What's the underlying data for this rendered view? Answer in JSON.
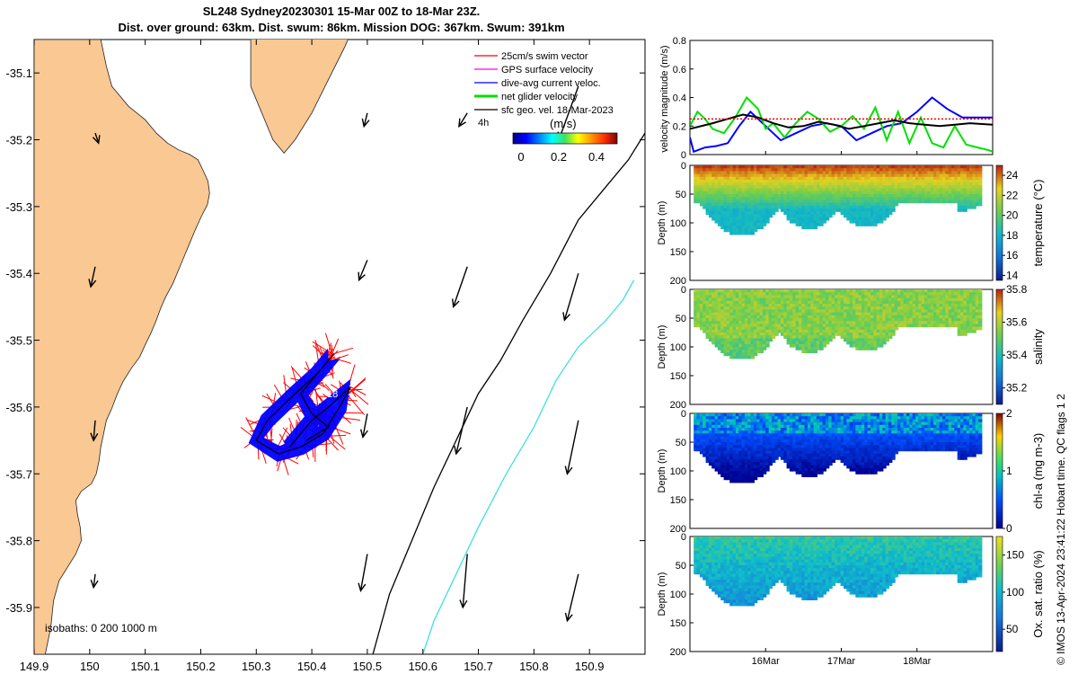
{
  "header": {
    "title_line1": "SL248 Sydney20230301 15-Mar 00Z to 18-Mar 23Z.",
    "title_line2": "Dist. over ground: 63km. Dist. swum: 86km. Mission DOG: 367km. Swum: 391km"
  },
  "colors": {
    "land": "#f9c893",
    "swim": "#ff0000",
    "gps": "#ff00ff",
    "dive_avg": "#0000ff",
    "net": "#00e000",
    "isobath_200": "#000000",
    "isobath_1000": "#40e0e0"
  },
  "chart_data": [
    {
      "id": "map",
      "type": "scatter",
      "xticks": [
        "149.9",
        "150",
        "150.1",
        "150.2",
        "150.3",
        "150.4",
        "150.5",
        "150.6",
        "150.7",
        "150.8",
        "150.9"
      ],
      "yticks": [
        "-35.1",
        "-35.2",
        "-35.3",
        "-35.4",
        "-35.5",
        "-35.6",
        "-35.7",
        "-35.8",
        "-35.9"
      ],
      "xlim": [
        149.9,
        151.0
      ],
      "ylim": [
        -35.97,
        -35.05
      ],
      "legend": [
        {
          "label": "25cm/s swim vector",
          "color": "#ff0000"
        },
        {
          "label": "GPS surface velocity",
          "color": "#ff00ff"
        },
        {
          "label": "dive-avg current veloc.",
          "color": "#0000ff"
        },
        {
          "label": "net glider velocity",
          "color": "#00e000"
        },
        {
          "label": "sfc geo. vel. 18-Mar-2023",
          "color": "#000000"
        }
      ],
      "legend_placement": "top-right",
      "colorbar": {
        "label": "(m/s)",
        "ticks": [
          "0",
          "0.2",
          "0.4"
        ],
        "range": [
          0,
          0.5
        ]
      },
      "isobath_label": "isobaths: 0   200  1000 m",
      "annotations": [
        "4h",
        "18"
      ],
      "coastline": [
        [
          150.02,
          -35.05
        ],
        [
          150.03,
          -35.09
        ],
        [
          150.04,
          -35.12
        ],
        [
          150.07,
          -35.15
        ],
        [
          150.1,
          -35.17
        ],
        [
          150.12,
          -35.19
        ],
        [
          150.14,
          -35.205
        ],
        [
          150.16,
          -35.215
        ],
        [
          150.18,
          -35.222
        ],
        [
          150.195,
          -35.23
        ],
        [
          150.205,
          -35.247
        ],
        [
          150.213,
          -35.262
        ],
        [
          150.216,
          -35.28
        ],
        [
          150.212,
          -35.297
        ],
        [
          150.201,
          -35.315
        ],
        [
          150.19,
          -35.335
        ],
        [
          150.18,
          -35.355
        ],
        [
          150.17,
          -35.375
        ],
        [
          150.16,
          -35.395
        ],
        [
          150.15,
          -35.415
        ],
        [
          150.137,
          -35.435
        ],
        [
          150.128,
          -35.452
        ],
        [
          150.12,
          -35.47
        ],
        [
          150.11,
          -35.49
        ],
        [
          150.1,
          -35.507
        ],
        [
          150.09,
          -35.525
        ],
        [
          150.075,
          -35.542
        ],
        [
          150.06,
          -35.562
        ],
        [
          150.05,
          -35.58
        ],
        [
          150.04,
          -35.602
        ],
        [
          150.03,
          -35.62
        ],
        [
          150.025,
          -35.64
        ],
        [
          150.02,
          -35.66
        ],
        [
          150.017,
          -35.68
        ],
        [
          150.012,
          -35.7
        ],
        [
          150.003,
          -35.715
        ],
        [
          149.985,
          -35.726
        ],
        [
          149.975,
          -35.74
        ],
        [
          149.978,
          -35.76
        ],
        [
          149.983,
          -35.78
        ],
        [
          149.985,
          -35.8
        ],
        [
          149.975,
          -35.82
        ],
        [
          149.96,
          -35.84
        ],
        [
          149.945,
          -35.86
        ],
        [
          149.935,
          -35.89
        ],
        [
          149.93,
          -35.93
        ],
        [
          149.92,
          -35.97
        ]
      ],
      "headland": [
        [
          150.29,
          -35.04
        ],
        [
          150.29,
          -35.12
        ],
        [
          150.31,
          -35.16
        ],
        [
          150.33,
          -35.2
        ],
        [
          150.35,
          -35.22
        ],
        [
          150.37,
          -35.2
        ],
        [
          150.4,
          -35.16
        ],
        [
          150.43,
          -35.11
        ],
        [
          150.46,
          -35.06
        ],
        [
          150.47,
          -35.04
        ]
      ],
      "isobath_200": [
        [
          150.51,
          -35.97
        ],
        [
          150.54,
          -35.88
        ],
        [
          150.58,
          -35.8
        ],
        [
          150.62,
          -35.72
        ],
        [
          150.66,
          -35.65
        ],
        [
          150.7,
          -35.58
        ],
        [
          150.74,
          -35.53
        ],
        [
          150.78,
          -35.47
        ],
        [
          150.83,
          -35.4
        ],
        [
          150.88,
          -35.32
        ],
        [
          150.93,
          -35.27
        ],
        [
          150.97,
          -35.23
        ],
        [
          151.0,
          -35.19
        ]
      ],
      "isobath_1000": [
        [
          150.6,
          -35.97
        ],
        [
          150.62,
          -35.92
        ],
        [
          150.66,
          -35.85
        ],
        [
          150.7,
          -35.78
        ],
        [
          150.75,
          -35.7
        ],
        [
          150.8,
          -35.63
        ],
        [
          150.84,
          -35.56
        ],
        [
          150.88,
          -35.51
        ],
        [
          150.93,
          -35.47
        ],
        [
          150.96,
          -35.44
        ],
        [
          150.98,
          -35.41
        ]
      ],
      "track": [
        [
          150.36,
          -35.66
        ],
        [
          150.4,
          -35.62
        ],
        [
          150.43,
          -35.6
        ],
        [
          150.47,
          -35.57
        ],
        [
          150.45,
          -35.6
        ],
        [
          150.42,
          -35.64
        ],
        [
          150.38,
          -35.66
        ],
        [
          150.34,
          -35.67
        ],
        [
          150.3,
          -35.65
        ],
        [
          150.32,
          -35.62
        ],
        [
          150.37,
          -35.58
        ],
        [
          150.41,
          -35.55
        ],
        [
          150.44,
          -35.52
        ],
        [
          150.42,
          -35.54
        ],
        [
          150.38,
          -35.58
        ],
        [
          150.4,
          -35.61
        ],
        [
          150.43,
          -35.63
        ],
        [
          150.39,
          -35.65
        ]
      ],
      "geo_vectors": [
        [
          150.01,
          -35.19,
          0.006,
          -0.015
        ],
        [
          150.01,
          -35.39,
          -0.008,
          -0.03
        ],
        [
          150.01,
          -35.62,
          -0.003,
          -0.03
        ],
        [
          150.01,
          -35.85,
          -0.003,
          -0.02
        ],
        [
          150.5,
          -35.16,
          -0.006,
          -0.02
        ],
        [
          150.5,
          -35.38,
          -0.015,
          -0.03
        ],
        [
          150.5,
          -35.61,
          -0.008,
          -0.035
        ],
        [
          150.5,
          -35.82,
          -0.012,
          -0.055
        ],
        [
          150.68,
          -35.16,
          -0.015,
          -0.02
        ],
        [
          150.68,
          -35.39,
          -0.025,
          -0.06
        ],
        [
          150.68,
          -35.6,
          -0.02,
          -0.07
        ],
        [
          150.68,
          -35.82,
          -0.008,
          -0.08
        ],
        [
          150.88,
          -35.12,
          -0.035,
          -0.08
        ],
        [
          150.88,
          -35.4,
          -0.025,
          -0.07
        ],
        [
          150.88,
          -35.62,
          -0.02,
          -0.08
        ],
        [
          150.88,
          -35.85,
          -0.02,
          -0.07
        ]
      ]
    },
    {
      "id": "velocity",
      "type": "line",
      "ylabel": "velocity magnitude (m/s)",
      "ylim": [
        0,
        0.8
      ],
      "yticks": [
        "0",
        "0.2",
        "0.4",
        "0.6",
        "0.8"
      ],
      "xlim": [
        15.0,
        19.0
      ],
      "series": [
        {
          "color": "#0000ff",
          "x": [
            15.0,
            15.05,
            15.2,
            15.35,
            15.5,
            15.65,
            15.8,
            16.0,
            16.2,
            16.4,
            16.6,
            16.8,
            17.0,
            17.2,
            17.4,
            17.6,
            17.8,
            18.0,
            18.2,
            18.4,
            18.6,
            18.8,
            19.0
          ],
          "y": [
            0.12,
            0.02,
            0.05,
            0.06,
            0.08,
            0.2,
            0.3,
            0.2,
            0.1,
            0.15,
            0.2,
            0.22,
            0.2,
            0.1,
            0.15,
            0.2,
            0.22,
            0.3,
            0.4,
            0.32,
            0.26,
            0.26,
            0.26
          ]
        },
        {
          "color": "#00e000",
          "x": [
            15.0,
            15.1,
            15.2,
            15.3,
            15.45,
            15.6,
            15.75,
            15.9,
            16.0,
            16.1,
            16.25,
            16.4,
            16.55,
            16.7,
            16.85,
            17.0,
            17.15,
            17.3,
            17.45,
            17.6,
            17.75,
            17.9,
            18.05,
            18.2,
            18.35,
            18.5,
            18.65,
            18.8,
            18.95,
            19.0
          ],
          "y": [
            0.2,
            0.3,
            0.25,
            0.18,
            0.15,
            0.26,
            0.4,
            0.32,
            0.18,
            0.22,
            0.12,
            0.22,
            0.3,
            0.25,
            0.16,
            0.2,
            0.27,
            0.18,
            0.33,
            0.1,
            0.3,
            0.08,
            0.26,
            0.08,
            0.05,
            0.2,
            0.07,
            0.05,
            0.03,
            0.02
          ]
        },
        {
          "color": "#000000",
          "x": [
            15.0,
            15.3,
            15.5,
            15.7,
            15.9,
            16.1,
            16.3,
            16.5,
            16.7,
            16.9,
            17.1,
            17.3,
            17.5,
            17.7,
            17.9,
            18.1,
            18.3,
            18.5,
            18.7,
            19.0
          ],
          "y": [
            0.18,
            0.22,
            0.25,
            0.28,
            0.26,
            0.22,
            0.19,
            0.2,
            0.23,
            0.21,
            0.18,
            0.2,
            0.22,
            0.24,
            0.22,
            0.21,
            0.2,
            0.21,
            0.22,
            0.21
          ]
        },
        {
          "color": "#ff0000",
          "x": [
            15.0,
            15.5,
            16.0,
            16.5,
            17.0,
            17.5,
            18.0,
            18.5,
            19.0
          ],
          "y": [
            0.25,
            0.25,
            0.25,
            0.25,
            0.25,
            0.25,
            0.25,
            0.25,
            0.25
          ]
        }
      ]
    },
    {
      "id": "temperature",
      "type": "heatmap",
      "ylabel": "Depth (m)",
      "colorbar_label": "temperature (°C)",
      "colorbar_ticks": [
        "14",
        "16",
        "18",
        "20",
        "22",
        "24"
      ],
      "crange": [
        13.5,
        25
      ],
      "surface": 23.5,
      "bottom": 18.5,
      "mixed": 25,
      "ylim": [
        0,
        200
      ],
      "yticks": [
        "0",
        "50",
        "100",
        "150",
        "200"
      ]
    },
    {
      "id": "salinity",
      "type": "heatmap",
      "ylabel": "Depth (m)",
      "colorbar_label": "salinity",
      "colorbar_ticks": [
        "35.2",
        "35.4",
        "35.6",
        "35.8"
      ],
      "crange": [
        35.1,
        35.8
      ],
      "surface": 35.55,
      "bottom": 35.5,
      "mixed": 35.5,
      "ylim": [
        0,
        200
      ],
      "yticks": [
        "0",
        "50",
        "100",
        "150",
        "200"
      ]
    },
    {
      "id": "chla",
      "type": "heatmap",
      "ylabel": "Depth (m)",
      "colorbar_label": "chl-a (mg m-3)",
      "colorbar_ticks": [
        "0",
        "1",
        "2"
      ],
      "crange": [
        0,
        2
      ],
      "surface": 0.6,
      "bottom": 0.05,
      "mixed": 0.7,
      "ylim": [
        0,
        200
      ],
      "yticks": [
        "0",
        "50",
        "100",
        "150",
        "200"
      ]
    },
    {
      "id": "oxygen",
      "type": "heatmap",
      "ylabel": "Depth (m)",
      "colorbar_label": "Ox. sat. ratio (%)",
      "colorbar_ticks": [
        "50",
        "100",
        "150"
      ],
      "crange": [
        20,
        175
      ],
      "surface": 115,
      "bottom": 90,
      "mixed": 120,
      "ylim": [
        0,
        200
      ],
      "yticks": [
        "0",
        "50",
        "100",
        "150",
        "200"
      ],
      "xticks": [
        {
          "v": 16,
          "label": "16Mar"
        },
        {
          "v": 17,
          "label": "17Mar"
        },
        {
          "v": 18,
          "label": "18Mar"
        }
      ]
    }
  ],
  "footer": {
    "vertical_note": "© IMOS 13-Apr-2024 23:41:22 Hobart time. QC flags 1  2"
  }
}
